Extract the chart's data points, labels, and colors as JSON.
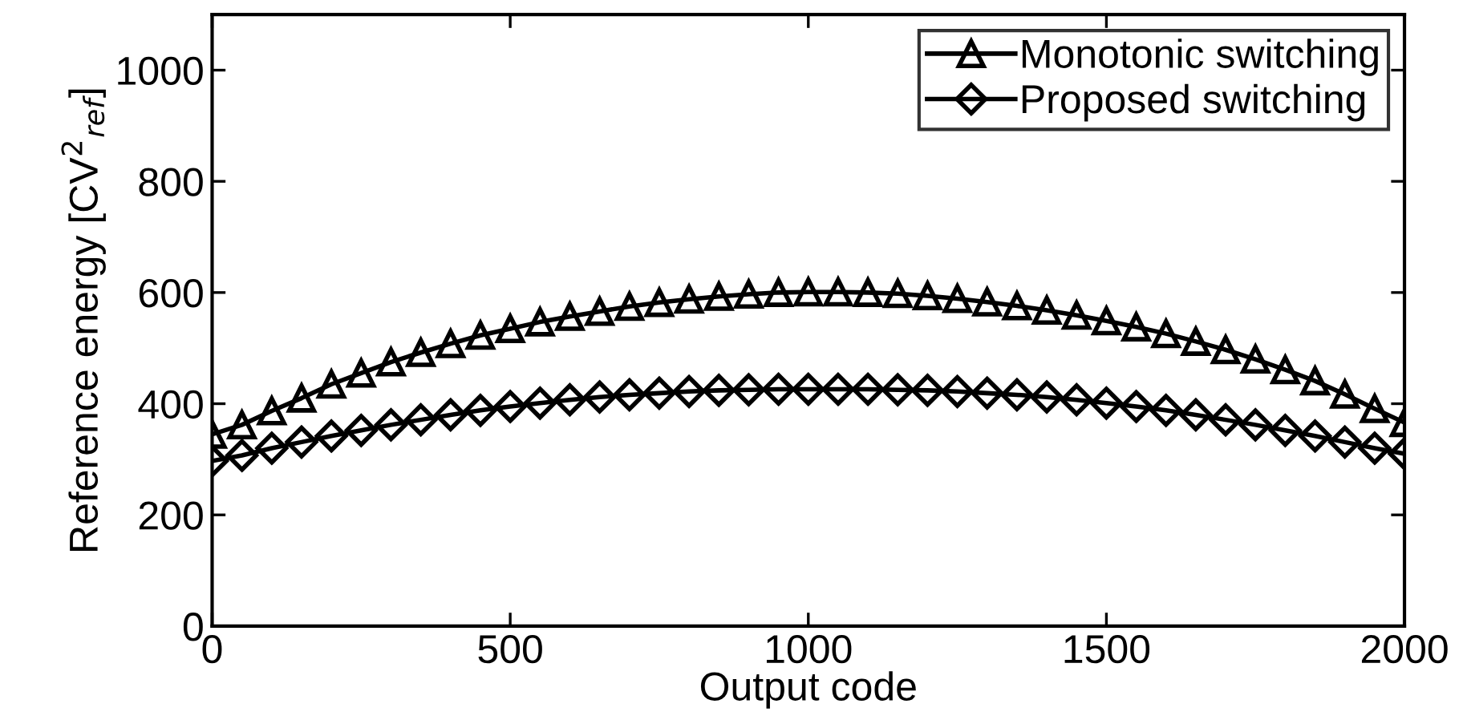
{
  "chart_data": {
    "type": "line",
    "xlabel": "Output code",
    "ylabel": "Reference energy [CV$^{2}$$_{ref}$]",
    "x": [
      0,
      50,
      100,
      150,
      200,
      250,
      300,
      350,
      400,
      450,
      500,
      550,
      600,
      650,
      700,
      750,
      800,
      850,
      900,
      950,
      1000,
      1050,
      1100,
      1150,
      1200,
      1250,
      1300,
      1350,
      1400,
      1450,
      1500,
      1550,
      1600,
      1650,
      1700,
      1750,
      1800,
      1850,
      1900,
      1950,
      2000
    ],
    "series": [
      {
        "name": "Monotonic switching",
        "color": "#000000",
        "marker": "triangle",
        "values": [
          345,
          362,
          387,
          410,
          435,
          455,
          475,
          492,
          508,
          523,
          535,
          547,
          557,
          566,
          575,
          582,
          588,
          593,
          597,
          600,
          601,
          601,
          600,
          598,
          594,
          589,
          583,
          576,
          568,
          559,
          549,
          538,
          526,
          512,
          497,
          480,
          461,
          441,
          417,
          391,
          366
        ]
      },
      {
        "name": "Proposed switching",
        "color": "#000000",
        "marker": "diamond",
        "values": [
          297,
          307,
          320,
          331,
          342,
          352,
          362,
          371,
          380,
          388,
          395,
          401,
          407,
          412,
          416,
          419,
          422,
          424,
          425,
          426,
          426,
          426,
          426,
          425,
          424,
          422,
          419,
          416,
          412,
          407,
          401,
          395,
          388,
          380,
          371,
          362,
          352,
          342,
          331,
          320,
          310
        ]
      }
    ],
    "xlim": [
      0,
      2000
    ],
    "xticks": [
      0,
      500,
      1000,
      1500,
      2000
    ],
    "ylim": [
      0,
      1100
    ],
    "yticks": [
      0,
      200,
      400,
      600,
      800,
      1000
    ],
    "grid": false,
    "legend": "top right",
    "line_style": "solid"
  }
}
